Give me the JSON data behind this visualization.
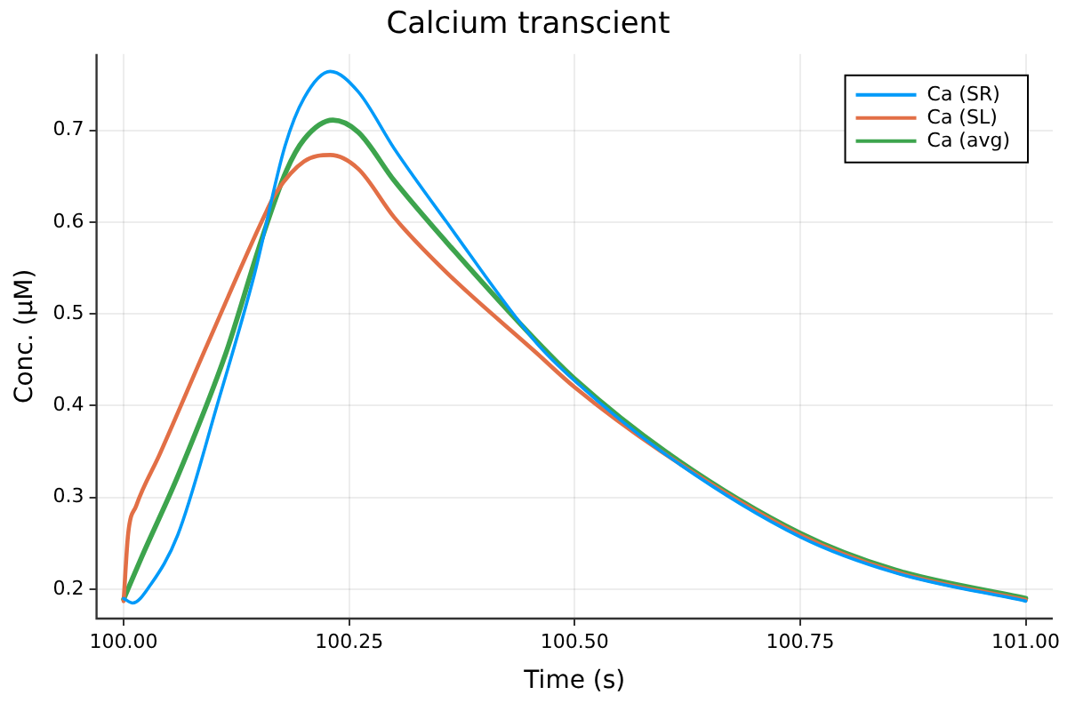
{
  "chart_data": {
    "type": "line",
    "title": "Calcium transcient",
    "xlabel": "Time (s)",
    "ylabel": "Conc. (μM)",
    "xlim": [
      99.97,
      101.03
    ],
    "xticks": [
      {
        "value": 100,
        "label": "100.00"
      },
      {
        "value": 100.25,
        "label": "100.25"
      },
      {
        "value": 100.5,
        "label": "100.50"
      },
      {
        "value": 100.75,
        "label": "100.75"
      },
      {
        "value": 101,
        "label": "101.00"
      }
    ],
    "ylim": [
      0.168,
      0.783
    ],
    "yticks": [
      0.2,
      0.3,
      0.4,
      0.5,
      0.6,
      0.7
    ],
    "grid": true,
    "legend": "top right",
    "marker": "none",
    "line_style": "solid",
    "series": [
      {
        "name": "Ca (SR)",
        "color": "#009af9",
        "x": [
          100.0,
          100.01,
          100.03,
          100.06,
          100.105,
          100.145,
          100.179,
          100.2,
          100.229,
          100.26,
          100.3,
          100.358,
          100.457,
          100.5,
          100.602,
          100.75,
          100.855,
          101.0
        ],
        "values": [
          0.19,
          0.185,
          0.205,
          0.259,
          0.405,
          0.543,
          0.683,
          0.735,
          0.764,
          0.742,
          0.68,
          0.6,
          0.469,
          0.427,
          0.346,
          0.257,
          0.218,
          0.187
        ]
      },
      {
        "name": "Ca (SL)",
        "color": "#e26f46",
        "x": [
          100.0,
          100.005,
          100.014,
          100.04,
          100.093,
          100.159,
          100.169,
          100.2,
          100.229,
          100.26,
          100.3,
          100.358,
          100.457,
          100.5,
          100.602,
          100.75,
          100.855,
          101.0
        ],
        "values": [
          0.187,
          0.26,
          0.291,
          0.347,
          0.467,
          0.613,
          0.632,
          0.666,
          0.673,
          0.658,
          0.605,
          0.545,
          0.458,
          0.42,
          0.346,
          0.259,
          0.219,
          0.188
        ]
      },
      {
        "name": "Ca (avg)",
        "color": "#3da44d",
        "x": [
          100.0,
          100.02,
          100.06,
          100.113,
          100.153,
          100.18,
          100.2,
          100.232,
          100.26,
          100.3,
          100.358,
          100.457,
          100.5,
          100.602,
          100.75,
          100.855,
          101.0
        ],
        "values": [
          0.189,
          0.235,
          0.323,
          0.456,
          0.581,
          0.655,
          0.69,
          0.711,
          0.698,
          0.645,
          0.578,
          0.471,
          0.429,
          0.349,
          0.261,
          0.221,
          0.19
        ]
      }
    ]
  }
}
